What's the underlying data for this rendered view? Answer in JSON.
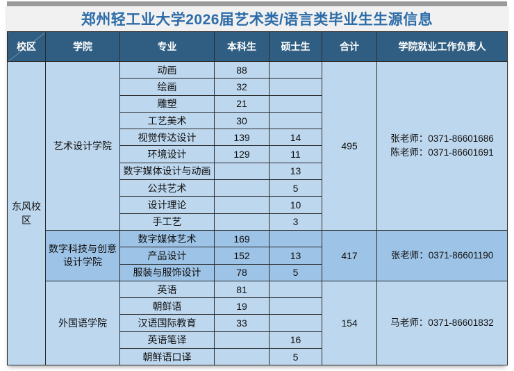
{
  "title": "郑州轻工业大学2026届艺术类/语言类毕业生生源信息",
  "colors": {
    "top_strip": "#9a9a9a",
    "title_bg": "#f1f1f1",
    "title_text": "#2d6ca8",
    "header_bg": "#2f5e82",
    "header_text": "#ffffff",
    "group_light": "#bdd7ee",
    "group_medium": "#9dc3e6",
    "campus_col": "#b9c7e8",
    "border": "#2b2b2b",
    "cell_text": "#111111"
  },
  "table": {
    "headers": [
      {
        "key": "campus",
        "label": "校区"
      },
      {
        "key": "college",
        "label": "学院"
      },
      {
        "key": "major",
        "label": "专业"
      },
      {
        "key": "undergrad",
        "label": "本科生"
      },
      {
        "key": "master",
        "label": "硕士生"
      },
      {
        "key": "total",
        "label": "合计"
      },
      {
        "key": "contact",
        "label": "学院就业工作负责人"
      }
    ],
    "campus": "东风校区",
    "groups": [
      {
        "college": "艺术设计学院",
        "shade": "light",
        "total": "495",
        "contacts": [
          "张老师：0371-86601686",
          "陈老师：0371-86601691"
        ],
        "rows": [
          {
            "major": "动画",
            "undergrad": "88",
            "master": ""
          },
          {
            "major": "绘画",
            "undergrad": "32",
            "master": ""
          },
          {
            "major": "雕塑",
            "undergrad": "21",
            "master": ""
          },
          {
            "major": "工艺美术",
            "undergrad": "30",
            "master": ""
          },
          {
            "major": "视觉传达设计",
            "undergrad": "139",
            "master": "14"
          },
          {
            "major": "环境设计",
            "undergrad": "129",
            "master": "11"
          },
          {
            "major": "数字媒体设计与动画",
            "undergrad": "",
            "master": "13"
          },
          {
            "major": "公共艺术",
            "undergrad": "",
            "master": "5"
          },
          {
            "major": "设计理论",
            "undergrad": "",
            "master": "10"
          },
          {
            "major": "手工艺",
            "undergrad": "",
            "master": "3"
          }
        ]
      },
      {
        "college": "数字科技与创意设计学院",
        "shade": "medium",
        "total": "417",
        "contacts": [
          "张老师：0371-86601190"
        ],
        "rows": [
          {
            "major": "数字媒体艺术",
            "undergrad": "169",
            "master": ""
          },
          {
            "major": "产品设计",
            "undergrad": "152",
            "master": "13"
          },
          {
            "major": "服装与服饰设计",
            "undergrad": "78",
            "master": "5"
          }
        ]
      },
      {
        "college": "外国语学院",
        "shade": "light",
        "total": "154",
        "contacts": [
          "马老师：0371-86601832"
        ],
        "rows": [
          {
            "major": "英语",
            "undergrad": "81",
            "master": ""
          },
          {
            "major": "朝鲜语",
            "undergrad": "19",
            "master": ""
          },
          {
            "major": "汉语国际教育",
            "undergrad": "33",
            "master": ""
          },
          {
            "major": "英语笔译",
            "undergrad": "",
            "master": "16"
          },
          {
            "major": "朝鲜语口译",
            "undergrad": "",
            "master": "5"
          }
        ]
      }
    ]
  }
}
